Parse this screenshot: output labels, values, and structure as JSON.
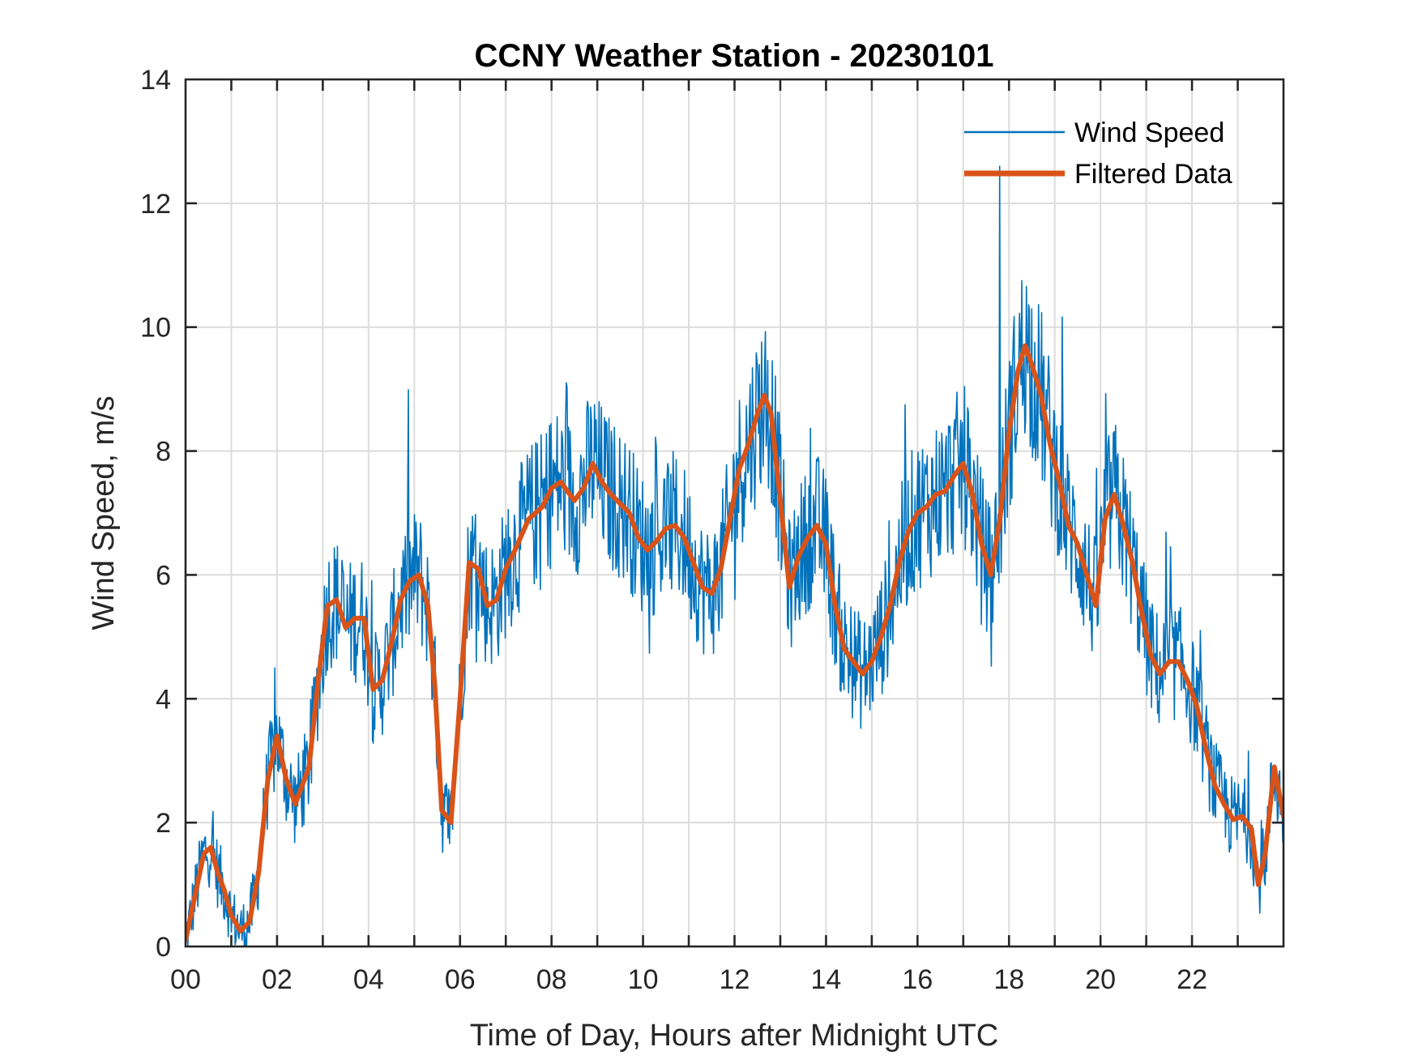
{
  "chart_data": {
    "type": "line",
    "title": "CCNY Weather Station - 20230101",
    "xlabel": "Time of Day, Hours after Midnight UTC",
    "ylabel": "Wind Speed, m/s",
    "xlim": [
      0,
      24
    ],
    "ylim": [
      0,
      14
    ],
    "x_ticks": [
      0,
      2,
      4,
      6,
      8,
      10,
      12,
      14,
      16,
      18,
      20,
      22
    ],
    "x_tick_labels": [
      "00",
      "02",
      "04",
      "06",
      "08",
      "10",
      "12",
      "14",
      "16",
      "18",
      "20",
      "22"
    ],
    "x_minor_grid_step": 1,
    "y_ticks": [
      0,
      2,
      4,
      6,
      8,
      10,
      12,
      14
    ],
    "y_tick_labels": [
      "0",
      "2",
      "4",
      "6",
      "8",
      "10",
      "12",
      "14"
    ],
    "grid": true,
    "legend": {
      "position": "top-right",
      "entries": [
        "Wind Speed",
        "Filtered Data"
      ]
    },
    "series": [
      {
        "name": "Filtered Data",
        "color": "#D95319",
        "x": [
          0.0,
          0.2,
          0.4,
          0.55,
          0.7,
          0.85,
          1.0,
          1.2,
          1.4,
          1.6,
          1.65,
          1.8,
          2.0,
          2.2,
          2.4,
          2.7,
          2.9,
          3.1,
          3.3,
          3.5,
          3.7,
          3.9,
          4.1,
          4.3,
          4.5,
          4.7,
          4.9,
          5.1,
          5.3,
          5.45,
          5.6,
          5.8,
          6.0,
          6.2,
          6.4,
          6.6,
          6.8,
          7.0,
          7.2,
          7.5,
          7.8,
          8.0,
          8.2,
          8.5,
          8.7,
          8.9,
          9.1,
          9.3,
          9.5,
          9.7,
          9.9,
          10.1,
          10.3,
          10.5,
          10.7,
          10.9,
          11.1,
          11.3,
          11.5,
          11.7,
          11.9,
          12.1,
          12.3,
          12.5,
          12.65,
          12.8,
          13.0,
          13.2,
          13.4,
          13.6,
          13.8,
          14.0,
          14.2,
          14.4,
          14.6,
          14.8,
          15.0,
          15.2,
          15.4,
          15.6,
          15.8,
          16.0,
          16.2,
          16.4,
          16.6,
          16.8,
          17.0,
          17.2,
          17.4,
          17.6,
          17.8,
          18.0,
          18.2,
          18.35,
          18.5,
          18.7,
          18.9,
          19.1,
          19.3,
          19.5,
          19.7,
          19.9,
          20.1,
          20.3,
          20.5,
          20.7,
          20.9,
          21.1,
          21.3,
          21.5,
          21.7,
          21.9,
          22.1,
          22.3,
          22.5,
          22.7,
          22.9,
          23.1,
          23.3,
          23.45,
          23.6,
          23.8,
          24.0
        ],
        "y": [
          0.1,
          0.8,
          1.5,
          1.6,
          1.2,
          0.9,
          0.5,
          0.25,
          0.4,
          1.2,
          1.6,
          2.7,
          3.4,
          2.7,
          2.3,
          2.9,
          4.3,
          5.5,
          5.6,
          5.15,
          5.3,
          5.3,
          4.15,
          4.3,
          4.9,
          5.6,
          5.9,
          6.0,
          5.5,
          4.2,
          2.2,
          2.0,
          4.0,
          6.2,
          6.1,
          5.5,
          5.6,
          6.1,
          6.4,
          6.9,
          7.1,
          7.4,
          7.5,
          7.2,
          7.4,
          7.8,
          7.5,
          7.3,
          7.15,
          7.0,
          6.6,
          6.4,
          6.55,
          6.75,
          6.8,
          6.6,
          6.2,
          5.8,
          5.7,
          6.1,
          6.9,
          7.7,
          8.1,
          8.6,
          8.9,
          8.6,
          7.2,
          5.8,
          6.3,
          6.6,
          6.8,
          6.5,
          5.5,
          4.8,
          4.6,
          4.4,
          4.6,
          5.0,
          5.5,
          6.2,
          6.7,
          7.0,
          7.1,
          7.3,
          7.35,
          7.6,
          7.8,
          7.3,
          6.5,
          6.0,
          6.9,
          8.3,
          9.3,
          9.7,
          9.4,
          8.9,
          8.1,
          7.5,
          6.8,
          6.5,
          6.0,
          5.5,
          6.9,
          7.3,
          6.8,
          6.2,
          5.4,
          4.7,
          4.4,
          4.6,
          4.6,
          4.3,
          3.9,
          3.2,
          2.6,
          2.3,
          2.05,
          2.1,
          1.9,
          1.0,
          1.5,
          2.9,
          2.1
        ]
      },
      {
        "name": "Wind Speed",
        "color": "#0072BD",
        "description": "Raw 1-minute wind speed samples; fluctuates around the filtered curve (typical spread about ±1 m/s, peaks up to ~12.6 m/s near 17.8 h, minimum 0)",
        "max_value": 12.6,
        "max_at_hour": 17.8,
        "min_value": 0,
        "noise_amplitude": 0.9,
        "sample_count": 1440
      }
    ]
  }
}
